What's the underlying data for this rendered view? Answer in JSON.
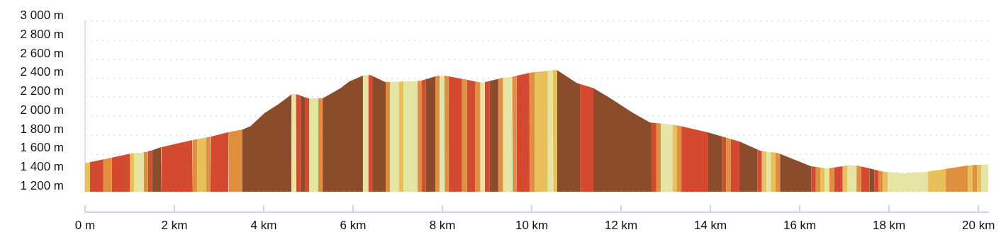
{
  "chart_data": {
    "type": "area",
    "series": [
      {
        "color": "#e8c05a",
        "x": [
          0,
          0.11,
          null,
          1.0,
          1.1,
          null,
          2.51,
          2.71,
          null,
          7.03,
          7.13,
          null,
          10.07,
          10.36,
          null,
          10.47,
          10.48,
          10.56,
          10.57,
          null,
          13.15,
          13.25,
          null,
          15.15,
          15.25,
          null,
          15.35,
          15.46,
          null,
          16.46,
          16.56,
          null,
          16.96,
          17.07,
          null,
          17.86,
          17.89,
          17.97,
          null,
          18.87,
          19.27,
          null,
          19.76,
          19.87,
          null,
          19.97,
          20.07
        ],
        "values": [
          1500,
          1511,
          null,
          1600,
          1605,
          null,
          1755,
          1772,
          null,
          2361,
          2363,
          null,
          2462,
          2478,
          null,
          2484,
          2485,
          2485,
          2482,
          null,
          1907,
          1900,
          null,
          1629,
          1624,
          null,
          1618,
          1612,
          null,
          1456,
          1449,
          null,
          1469,
          1478,
          null,
          1413,
          1410,
          1407,
          null,
          1412,
          1441,
          null,
          1476,
          1480,
          null,
          1483,
          1485
        ]
      },
      {
        "color": "#d44a31",
        "x": [
          0.11,
          0.41,
          null,
          0.6,
          1.0,
          null,
          1.41,
          1.5,
          null,
          1.71,
          2.4,
          2.41,
          null,
          2.81,
          3.21,
          null,
          4.72,
          4.73,
          4.82,
          null,
          4.92,
          5.0,
          5.02,
          null,
          6.34,
          6.4,
          6.43,
          null,
          7.54,
          7.63,
          null,
          8.14,
          8.44,
          null,
          8.55,
          8.74,
          null,
          8.95,
          9.06,
          null,
          9.66,
          9.95,
          9.96,
          null,
          11.08,
          11.38,
          null,
          12.68,
          12.79,
          null,
          13.35,
          13.92,
          13.95,
          null,
          14.26,
          14.35,
          null,
          14.45,
          14.65,
          null,
          15.05,
          15.13,
          15.15,
          null,
          16.26,
          16.36,
          null,
          16.77,
          16.96,
          null,
          17.37,
          17.56,
          null,
          17.67,
          17.77
        ],
        "values": [
          1511,
          1541,
          null,
          1560,
          1600,
          null,
          1625,
          1637,
          null,
          1671,
          1745,
          1746,
          null,
          1781,
          1829,
          null,
          2230,
          2230,
          2215,
          null,
          2198,
          2185,
          2185,
          null,
          2430,
          2430,
          2423,
          null,
          2374,
          2387,
          null,
          2417,
          2392,
          null,
          2382,
          2364,
          null,
          2357,
          2369,
          null,
          2424,
          2455,
          2456,
          null,
          2338,
          2295,
          null,
          1929,
          1924,
          null,
          1890,
          1830,
          1826,
          null,
          1783,
          1771,
          null,
          1757,
          1730,
          null,
          1647,
          1630,
          1629,
          null,
          1469,
          1462,
          null,
          1456,
          1469,
          null,
          1467,
          1446,
          null,
          1434,
          1423
        ]
      },
      {
        "color": "#e08f3f",
        "x": [
          0.41,
          0.6,
          null,
          1.31,
          1.38,
          1.41,
          null,
          2.41,
          2.51,
          null,
          2.71,
          2.8,
          2.81,
          null,
          3.21,
          3.22,
          3.52,
          null,
          5.22,
          5.32,
          null,
          6.73,
          6.83,
          null,
          7.44,
          7.51,
          7.54,
          null,
          7.84,
          7.89,
          7.94,
          null,
          8.04,
          8.05,
          8.14,
          null,
          8.44,
          8.46,
          8.55,
          null,
          8.74,
          8.85,
          null,
          9.25,
          9.32,
          9.36,
          null,
          9.56,
          9.57,
          9.66,
          null,
          9.96,
          10.07,
          null,
          12.79,
          12.89,
          null,
          13.25,
          13.35,
          null,
          14.35,
          14.45,
          null,
          15.46,
          15.5,
          15.56,
          null,
          16.36,
          16.46,
          null,
          16.66,
          16.77,
          null,
          17.27,
          17.3,
          17.37,
          null,
          17.77,
          17.86,
          null,
          19.27,
          19.73,
          19.76,
          null,
          19.87,
          19.97
        ],
        "values": [
          1541,
          1560,
          null,
          1616,
          1620,
          1625,
          null,
          1746,
          1755,
          null,
          1772,
          1780,
          1781,
          null,
          1829,
          1830,
          1855,
          null,
          2185,
          2185,
          null,
          2360,
          2360,
          null,
          2369,
          2370,
          2374,
          null,
          2418,
          2425,
          2425,
          null,
          2425,
          2425,
          2417,
          null,
          2392,
          2390,
          2382,
          null,
          2364,
          2354,
          null,
          2392,
          2400,
          2402,
          null,
          2414,
          2415,
          2424,
          null,
          2456,
          2462,
          null,
          1924,
          1920,
          null,
          1900,
          1890,
          null,
          1771,
          1757,
          null,
          1612,
          1610,
          1599,
          null,
          1462,
          1456,
          null,
          1448,
          1456,
          null,
          1476,
          1475,
          1467,
          null,
          1423,
          1413,
          null,
          1441,
          1475,
          1476,
          null,
          1480,
          1483
        ]
      },
      {
        "color": "#e6e4a2",
        "x": [
          1.1,
          1.31,
          null,
          4.62,
          4.63,
          4.72,
          null,
          5.02,
          5.22,
          null,
          6.22,
          6.24,
          6.34,
          null,
          6.83,
          6.98,
          7.03,
          null,
          7.13,
          7.44,
          null,
          7.94,
          8.04,
          null,
          8.85,
          8.89,
          8.95,
          null,
          9.36,
          9.56,
          null,
          10.36,
          10.47,
          null,
          12.89,
          13.02,
          13.15,
          null,
          15.25,
          15.35,
          null,
          16.56,
          16.62,
          16.66,
          null,
          17.07,
          17.1,
          17.27,
          null,
          17.97,
          18.3,
          18.84,
          18.87,
          null,
          20.07,
          20.22
        ],
        "values": [
          1605,
          1616,
          null,
          2227,
          2230,
          2230,
          null,
          2185,
          2185,
          null,
          2426,
          2430,
          2430,
          null,
          2360,
          2360,
          2361,
          null,
          2363,
          2369,
          null,
          2425,
          2425,
          null,
          2354,
          2350,
          2357,
          null,
          2402,
          2414,
          null,
          2478,
          2484,
          null,
          1920,
          1915,
          1907,
          null,
          1624,
          1618,
          null,
          1449,
          1445,
          1448,
          null,
          1478,
          1480,
          1476,
          null,
          1407,
          1395,
          1410,
          1412,
          null,
          1485,
          1490
        ]
      },
      {
        "color": "#8b4c2b",
        "x": [
          1.5,
          1.7,
          1.71,
          null,
          3.52,
          3.7,
          4.02,
          4.33,
          4.62,
          null,
          4.82,
          4.92,
          null,
          5.32,
          5.71,
          5.92,
          6.22,
          null,
          6.43,
          6.71,
          6.73,
          null,
          7.63,
          7.84,
          null,
          9.06,
          9.25,
          null,
          10.57,
          11.0,
          11.08,
          null,
          11.38,
          11.75,
          12.27,
          12.65,
          12.68,
          null,
          13.95,
          14.26,
          null,
          14.65,
          15.05,
          null,
          15.56,
          16.24,
          16.26,
          null,
          17.56,
          17.67
        ],
        "values": [
          1637,
          1670,
          1671,
          null,
          1855,
          1890,
          2030,
          2125,
          2227,
          null,
          2215,
          2198,
          null,
          2185,
          2290,
          2365,
          2426,
          null,
          2423,
          2360,
          2360,
          null,
          2387,
          2418,
          null,
          2369,
          2392,
          null,
          2482,
          2350,
          2338,
          null,
          2295,
          2190,
          2030,
          1930,
          1929,
          null,
          1826,
          1783,
          null,
          1730,
          1647,
          null,
          1599,
          1470,
          1469,
          null,
          1446,
          1434
        ]
      }
    ],
    "xlim": [
      0,
      20.22
    ],
    "xticks": [
      {
        "value": 0,
        "label": "0 m"
      },
      {
        "value": 2,
        "label": "2 km"
      },
      {
        "value": 4,
        "label": "4 km"
      },
      {
        "value": 6,
        "label": "6 km"
      },
      {
        "value": 8,
        "label": "8 km"
      },
      {
        "value": 10,
        "label": "10 km"
      },
      {
        "value": 12,
        "label": "12 km"
      },
      {
        "value": 14,
        "label": "14 km"
      },
      {
        "value": 16,
        "label": "16 km"
      },
      {
        "value": 18,
        "label": "18 km"
      },
      {
        "value": 20,
        "label": "20 km"
      }
    ],
    "ylim": [
      1200,
      3000
    ],
    "yticks": [
      {
        "value": 1200,
        "label": "1 200 m"
      },
      {
        "value": 1400,
        "label": "1 400 m"
      },
      {
        "value": 1600,
        "label": "1 600 m"
      },
      {
        "value": 1800,
        "label": "1 800 m"
      },
      {
        "value": 2000,
        "label": "2 000 m"
      },
      {
        "value": 2200,
        "label": "2 200 m"
      },
      {
        "value": 2400,
        "label": "2 400 m"
      },
      {
        "value": 2600,
        "label": "2 600 m"
      },
      {
        "value": 2800,
        "label": "2 800 m"
      },
      {
        "value": 3000,
        "label": "3 000 m"
      }
    ],
    "grid": "y"
  }
}
